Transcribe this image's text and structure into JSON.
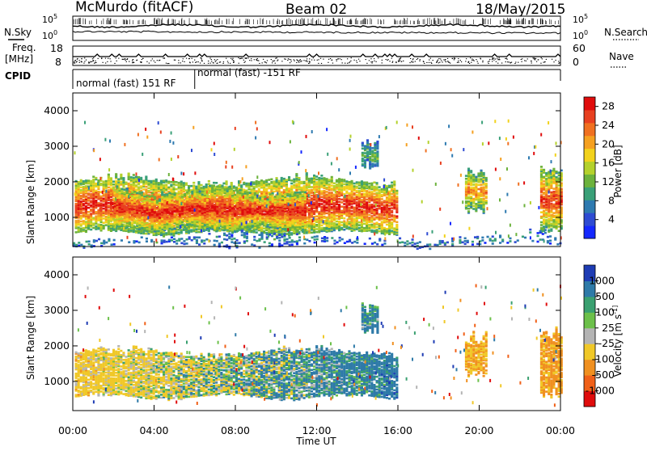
{
  "header": {
    "station": "McMurdo (fitACF)",
    "beam": "Beam 02",
    "date": "18/May/2015"
  },
  "param_strip": {
    "nsky_label": "N.Sky",
    "nsearch_label": "N.Search",
    "freq_label": "Freq.",
    "freq_unit": "[MHz]",
    "nave_label": "Nave",
    "cpid_label": "CPID",
    "noise_ticks_left": [
      "10^5",
      "10^0"
    ],
    "noise_ticks_right": [
      "10^5",
      "10^0"
    ],
    "freq_ticks": [
      "18",
      "8"
    ],
    "nave_ticks": [
      "60",
      "0"
    ],
    "cpid_segments": [
      {
        "label": "normal (fast) 151 RF",
        "start_hour": 0,
        "end_hour": 6
      },
      {
        "label": "normal (fast) -151 RF",
        "start_hour": 6,
        "end_hour": 24
      }
    ]
  },
  "chart_data": [
    {
      "type": "heatmap",
      "title": "",
      "xlabel": "Time UT",
      "ylabel": "Slant Range [km]",
      "xlim_hours": [
        0,
        24
      ],
      "ylim": [
        180,
        4500
      ],
      "x_ticks": [
        "00:00",
        "04:00",
        "08:00",
        "12:00",
        "16:00",
        "20:00",
        "00:00"
      ],
      "y_ticks": [
        1000,
        2000,
        3000,
        4000
      ],
      "colorbar": {
        "label": "Power [dB]",
        "ticks": [
          4,
          8,
          12,
          16,
          20,
          24,
          28
        ],
        "range": [
          0,
          30
        ],
        "colors": [
          "#1428ff",
          "#2e4bd2",
          "#2e7ab0",
          "#3aa078",
          "#6cb23c",
          "#b4d12c",
          "#f2d21c",
          "#f5a020",
          "#f07020",
          "#e84020",
          "#e00c0c"
        ]
      },
      "regions": [
        {
          "name": "main echo band",
          "t_start": 0.1,
          "t_end": 16.0,
          "range_low": 550,
          "range_high": 2000,
          "peak_db": 30
        },
        {
          "name": "strong echoes",
          "t_start": 2.0,
          "t_end": 11.5,
          "range_low": 650,
          "range_high": 1700,
          "peak_db": 30
        },
        {
          "name": "echo patch",
          "t_start": 14.2,
          "t_end": 15.0,
          "range_low": 2400,
          "range_high": 3100,
          "peak_db": 12
        },
        {
          "name": "echo patch",
          "t_start": 19.3,
          "t_end": 20.3,
          "range_low": 1200,
          "range_high": 2200,
          "peak_db": 24
        },
        {
          "name": "echo patch",
          "t_start": 23.0,
          "t_end": 24.0,
          "range_low": 600,
          "range_high": 2300,
          "peak_db": 28
        },
        {
          "name": "ground scatter band",
          "t_start": 0,
          "t_end": 24,
          "range_low": 200,
          "range_high": 420,
          "peak_db": 8
        }
      ]
    },
    {
      "type": "heatmap",
      "title": "",
      "xlabel": "Time UT",
      "ylabel": "Slant Range [km]",
      "xlim_hours": [
        0,
        24
      ],
      "ylim": [
        180,
        4500
      ],
      "x_ticks": [
        "00:00",
        "04:00",
        "08:00",
        "12:00",
        "16:00",
        "20:00",
        "00:00"
      ],
      "y_ticks": [
        1000,
        2000,
        3000,
        4000
      ],
      "colorbar": {
        "label": "Velocity [m s^-1]",
        "ticks": [
          1000,
          500,
          100,
          25,
          -25,
          -100,
          -500,
          -1000
        ],
        "colors": [
          "#1e3cb4",
          "#2e7aa8",
          "#3aa070",
          "#6cc04a",
          "#b4b4b4",
          "#f0c828",
          "#f09020",
          "#f06018",
          "#e00c0c"
        ]
      },
      "regions": [
        {
          "name": "main echo band",
          "t_start": 0.1,
          "t_end": 16.0,
          "range_low": 550,
          "range_high": 1800,
          "velocity_early": -300,
          "velocity_late": 300
        },
        {
          "name": "echo patch",
          "t_start": 14.2,
          "t_end": 15.0,
          "range_low": 2400,
          "range_high": 3100,
          "velocity": 200
        },
        {
          "name": "echo patch",
          "t_start": 19.3,
          "t_end": 20.3,
          "range_low": 1200,
          "range_high": 2200,
          "velocity": -500
        },
        {
          "name": "echo patch",
          "t_start": 23.0,
          "t_end": 24.0,
          "range_low": 600,
          "range_high": 2300,
          "velocity": -600
        }
      ]
    }
  ]
}
